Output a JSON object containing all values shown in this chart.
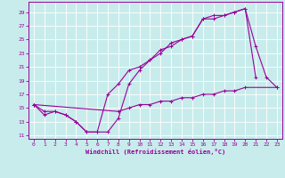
{
  "xlabel": "Windchill (Refroidissement éolien,°C)",
  "xlim": [
    -0.5,
    23.5
  ],
  "ylim": [
    10.5,
    30.5
  ],
  "yticks": [
    11,
    13,
    15,
    17,
    19,
    21,
    23,
    25,
    27,
    29
  ],
  "xticks": [
    0,
    1,
    2,
    3,
    4,
    5,
    6,
    7,
    8,
    9,
    10,
    11,
    12,
    13,
    14,
    15,
    16,
    17,
    18,
    19,
    20,
    21,
    22,
    23
  ],
  "bg_color": "#c8ecec",
  "line_color": "#990099",
  "grid_color": "#ffffff",
  "line1_x": [
    0,
    1,
    2,
    3,
    4,
    5,
    6,
    7,
    8,
    9,
    10,
    11,
    12,
    13,
    14,
    15,
    16,
    17,
    18,
    19,
    20,
    21,
    22,
    23
  ],
  "line1_y": [
    15.5,
    14.0,
    14.5,
    14.0,
    13.0,
    11.5,
    11.5,
    11.5,
    13.5,
    18.5,
    20.5,
    22.0,
    23.5,
    24.0,
    25.0,
    25.5,
    28.0,
    28.5,
    28.5,
    29.0,
    29.5,
    24.0,
    19.5,
    18.0
  ],
  "line2_x": [
    0,
    1,
    2,
    3,
    4,
    5,
    6,
    7,
    8,
    9,
    10,
    11,
    12,
    13,
    14,
    15,
    16,
    17,
    18,
    19,
    20,
    21
  ],
  "line2_y": [
    15.5,
    14.5,
    14.5,
    14.0,
    13.0,
    11.5,
    11.5,
    17.0,
    18.5,
    20.5,
    21.0,
    22.0,
    23.0,
    24.5,
    25.0,
    25.5,
    28.0,
    28.0,
    28.5,
    29.0,
    29.5,
    19.5
  ],
  "line3_x": [
    0,
    8,
    9,
    10,
    11,
    12,
    13,
    14,
    15,
    16,
    17,
    18,
    19,
    20,
    23
  ],
  "line3_y": [
    15.5,
    14.5,
    15.0,
    15.5,
    15.5,
    16.0,
    16.0,
    16.5,
    16.5,
    17.0,
    17.0,
    17.5,
    17.5,
    18.0,
    18.0
  ]
}
